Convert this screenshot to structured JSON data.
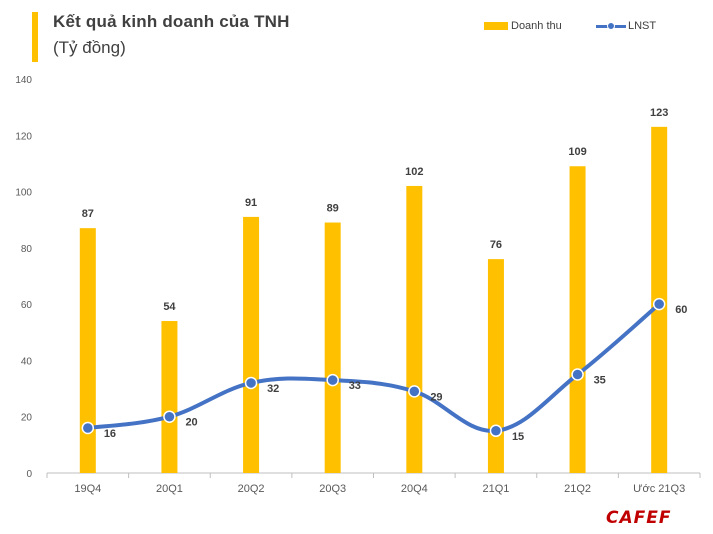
{
  "header": {
    "title": "Kết quả kinh doanh của TNH",
    "subtitle": "(Tỷ đồng)"
  },
  "logo": "CAFEF",
  "colors": {
    "bar": "#FFC000",
    "line": "#4472C4",
    "logo": "#C00000"
  },
  "chart_data": {
    "type": "bar",
    "title": "Kết quả kinh doanh của TNH",
    "subtitle": "(Tỷ đồng)",
    "categories": [
      "19Q4",
      "20Q1",
      "20Q2",
      "20Q3",
      "20Q4",
      "21Q1",
      "21Q2",
      "Ước 21Q3"
    ],
    "series": [
      {
        "name": "Doanh thu",
        "type": "bar",
        "values": [
          87,
          54,
          91,
          89,
          102,
          76,
          109,
          123
        ]
      },
      {
        "name": "LNST",
        "type": "line",
        "smooth": true,
        "values": [
          16,
          20,
          32,
          33,
          29,
          15,
          35,
          60
        ]
      }
    ],
    "ylim": [
      0,
      140
    ],
    "yticks": [
      0,
      20,
      40,
      60,
      80,
      100,
      120,
      140
    ],
    "legend_position": "top-right",
    "grid": false
  }
}
